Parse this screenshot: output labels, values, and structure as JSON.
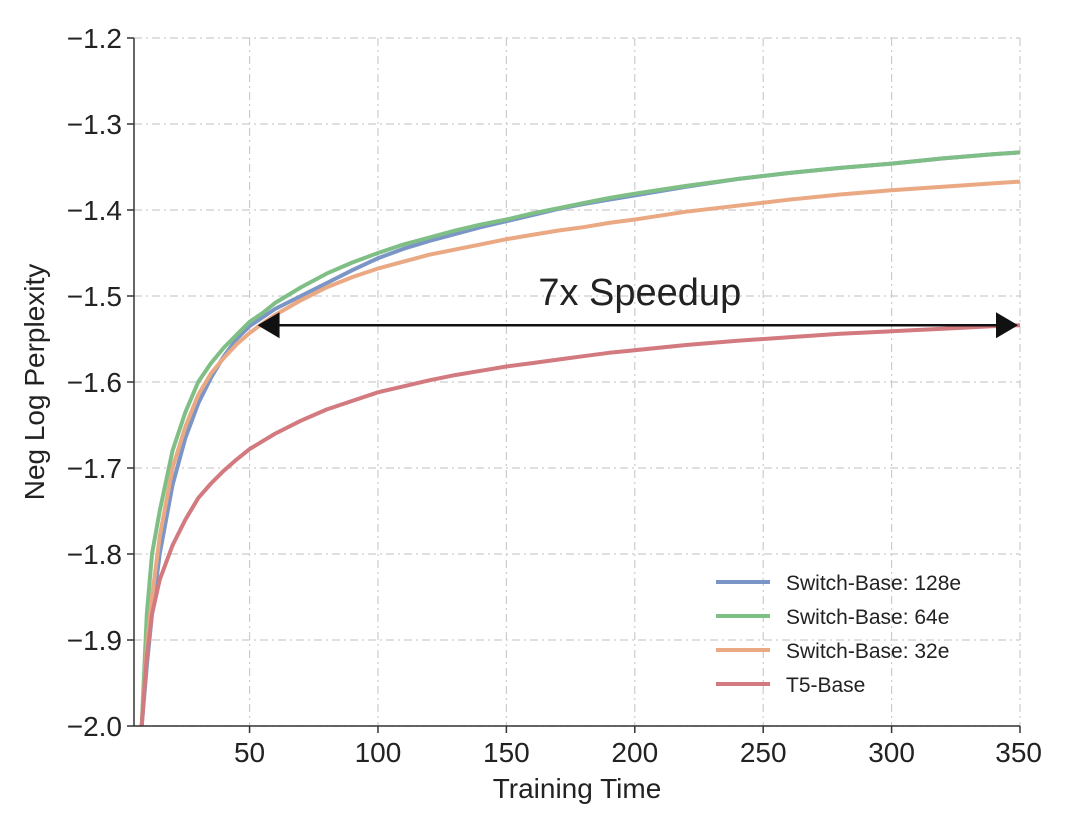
{
  "chart_data": {
    "type": "line",
    "title": "",
    "xlabel": "Training Time",
    "ylabel": "Neg Log Perplexity",
    "xlim": [
      5,
      350
    ],
    "ylim": [
      -2.0,
      -1.2
    ],
    "xticks": [
      50,
      100,
      150,
      200,
      250,
      300,
      350
    ],
    "yticks": [
      -2.0,
      -1.9,
      -1.8,
      -1.7,
      -1.6,
      -1.5,
      -1.4,
      -1.3,
      -1.2
    ],
    "ytick_labels": [
      "−2.0",
      "−1.9",
      "−1.8",
      "−1.7",
      "−1.6",
      "−1.5",
      "−1.4",
      "−1.3",
      "−1.2"
    ],
    "xtick_labels": [
      "50",
      "100",
      "150",
      "200",
      "250",
      "300",
      "350"
    ],
    "grid": true,
    "legend_position": "bottom-right",
    "series": [
      {
        "name": "Switch-Base: 128e",
        "color": "#7b96c6",
        "x": [
          8,
          10,
          12,
          15,
          20,
          25,
          30,
          35,
          40,
          45,
          50,
          55,
          60,
          70,
          80,
          90,
          100,
          110,
          120,
          130,
          140,
          150,
          160,
          170,
          180,
          190,
          200,
          220,
          240,
          260,
          280,
          300,
          320,
          340,
          350
        ],
        "y": [
          -2.0,
          -1.93,
          -1.87,
          -1.8,
          -1.72,
          -1.665,
          -1.625,
          -1.595,
          -1.57,
          -1.55,
          -1.535,
          -1.525,
          -1.515,
          -1.5,
          -1.485,
          -1.47,
          -1.456,
          -1.445,
          -1.436,
          -1.428,
          -1.42,
          -1.413,
          -1.406,
          -1.399,
          -1.393,
          -1.388,
          -1.383,
          -1.373,
          -1.364,
          -1.357,
          -1.351,
          -1.346,
          -1.34,
          -1.335,
          -1.333
        ]
      },
      {
        "name": "Switch-Base: 64e",
        "color": "#7fbf86",
        "x": [
          8,
          10,
          12,
          15,
          20,
          25,
          30,
          35,
          40,
          45,
          50,
          55,
          60,
          70,
          80,
          90,
          100,
          110,
          120,
          130,
          140,
          150,
          160,
          170,
          180,
          190,
          200,
          220,
          240,
          260,
          280,
          300,
          320,
          340,
          350
        ],
        "y": [
          -2.0,
          -1.87,
          -1.8,
          -1.75,
          -1.68,
          -1.635,
          -1.6,
          -1.578,
          -1.56,
          -1.545,
          -1.53,
          -1.52,
          -1.508,
          -1.49,
          -1.474,
          -1.461,
          -1.45,
          -1.44,
          -1.432,
          -1.424,
          -1.417,
          -1.411,
          -1.404,
          -1.398,
          -1.392,
          -1.386,
          -1.381,
          -1.372,
          -1.364,
          -1.357,
          -1.351,
          -1.346,
          -1.34,
          -1.335,
          -1.333
        ]
      },
      {
        "name": "Switch-Base: 32e",
        "color": "#eaa883",
        "x": [
          8,
          10,
          12,
          15,
          20,
          25,
          30,
          35,
          40,
          45,
          50,
          55,
          60,
          70,
          80,
          90,
          100,
          110,
          120,
          130,
          140,
          150,
          160,
          170,
          180,
          190,
          200,
          220,
          240,
          260,
          280,
          300,
          320,
          340,
          350
        ],
        "y": [
          -2.0,
          -1.91,
          -1.85,
          -1.78,
          -1.7,
          -1.652,
          -1.615,
          -1.59,
          -1.572,
          -1.556,
          -1.543,
          -1.532,
          -1.522,
          -1.505,
          -1.49,
          -1.478,
          -1.468,
          -1.46,
          -1.452,
          -1.446,
          -1.44,
          -1.434,
          -1.429,
          -1.424,
          -1.42,
          -1.415,
          -1.411,
          -1.402,
          -1.395,
          -1.388,
          -1.382,
          -1.377,
          -1.373,
          -1.369,
          -1.367
        ]
      },
      {
        "name": "T5-Base",
        "color": "#d27a7f",
        "x": [
          8,
          10,
          12,
          15,
          20,
          25,
          30,
          35,
          40,
          45,
          50,
          55,
          60,
          70,
          80,
          90,
          100,
          110,
          120,
          130,
          140,
          150,
          160,
          170,
          180,
          190,
          200,
          220,
          240,
          260,
          280,
          300,
          320,
          340,
          350
        ],
        "y": [
          -2.0,
          -1.92,
          -1.87,
          -1.83,
          -1.79,
          -1.76,
          -1.735,
          -1.718,
          -1.703,
          -1.69,
          -1.678,
          -1.669,
          -1.66,
          -1.645,
          -1.632,
          -1.622,
          -1.612,
          -1.605,
          -1.598,
          -1.592,
          -1.587,
          -1.582,
          -1.578,
          -1.574,
          -1.57,
          -1.566,
          -1.563,
          -1.557,
          -1.552,
          -1.548,
          -1.544,
          -1.541,
          -1.538,
          -1.535,
          -1.534
        ]
      }
    ],
    "annotation": {
      "text": "7x Speedup",
      "arrow_from_x": 50,
      "arrow_to_x": 350,
      "arrow_y": -1.534
    }
  }
}
